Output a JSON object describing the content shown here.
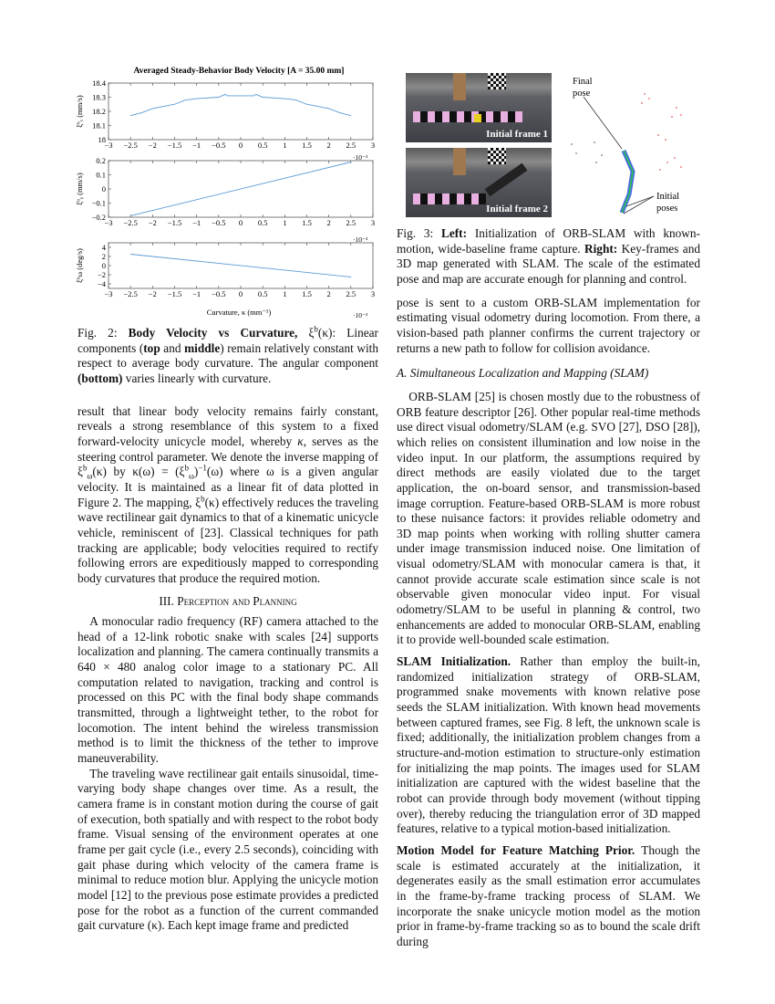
{
  "chart_data": {
    "type": "line",
    "title": "Averaged Steady-Behavior Body Velocity [A = 35.00 mm]",
    "xlabel": "Curvature, κ (mm⁻¹)",
    "x_scale_label": "·10⁻³",
    "xlim": [
      -3,
      3
    ],
    "xticks": [
      "−3",
      "−2.5",
      "−2",
      "−1.5",
      "−1",
      "−0.5",
      "0",
      "0.5",
      "1",
      "1.5",
      "2",
      "2.5",
      "3"
    ],
    "line_color": "#5b9bd5",
    "grid": false,
    "panels": [
      {
        "ylabel": "ξᵇₓ (mm/s)",
        "ylim": [
          18,
          18.4
        ],
        "yticks": [
          "18",
          "18.1",
          "18.2",
          "18.3",
          "18.4"
        ],
        "x": [
          -2.5,
          -2.25,
          -2,
          -1.5,
          -1.25,
          -1,
          -0.5,
          -0.35,
          -0.3,
          0,
          0.3,
          0.35,
          0.5,
          1,
          1.25,
          1.5,
          2,
          2.25,
          2.5
        ],
        "y": [
          18.17,
          18.19,
          18.22,
          18.25,
          18.28,
          18.29,
          18.3,
          18.32,
          18.31,
          18.31,
          18.31,
          18.32,
          18.3,
          18.29,
          18.28,
          18.25,
          18.22,
          18.19,
          18.17
        ]
      },
      {
        "ylabel": "ξᵇᵧ (mm/s)",
        "ylim": [
          -0.2,
          0.2
        ],
        "yticks": [
          "−0.2",
          "−0.1",
          "0",
          "0.1",
          "0.2"
        ],
        "scale_label": "·10⁻³",
        "x": [
          -2.5,
          2.5
        ],
        "y": [
          -0.19,
          0.19
        ]
      },
      {
        "ylabel": "ξᵇω (deg/s)",
        "ylim": [
          -5,
          5
        ],
        "yticks": [
          "−4",
          "−2",
          "0",
          "2",
          "4"
        ],
        "ytick_values": [
          -4,
          -2,
          0,
          2,
          4
        ],
        "scale_label": "·10⁻³",
        "x": [
          -2.5,
          2.5
        ],
        "y": [
          2.5,
          -2.5
        ]
      }
    ]
  },
  "fig3": {
    "label1": "Initial frame 1",
    "label2": "Initial frame 2",
    "final_pose": [
      "Final",
      "pose"
    ],
    "initial_poses": [
      "Initial",
      "poses"
    ]
  },
  "left": {
    "fig2_caption": [
      [
        "",
        "Fig. 2: "
      ],
      [
        "b",
        "Body Velocity vs Curvature,"
      ],
      [
        "",
        " ξ"
      ],
      [
        "sup",
        "b"
      ],
      [
        "",
        "(κ): Linear components ("
      ],
      [
        "b",
        "top"
      ],
      [
        "",
        " and "
      ],
      [
        "b",
        "middle"
      ],
      [
        "",
        ") remain relatively constant with respect to average body curvature. The angular component "
      ],
      [
        "b",
        "(bottom)"
      ],
      [
        "",
        " varies linearly with curvature."
      ]
    ],
    "p1": [
      [
        "",
        "result that linear body velocity remains fairly constant, reveals a strong resemblance of this system to a fixed forward-velocity unicycle model, whereby "
      ],
      [
        "i",
        "κ"
      ],
      [
        "",
        ", serves as the steering control parameter. We denote the inverse mapping of ξ"
      ],
      [
        "sup",
        "b"
      ],
      [
        "sub",
        "ω"
      ],
      [
        "",
        "(κ) by κ(ω) = (ξ"
      ],
      [
        "sup",
        "b"
      ],
      [
        "sub",
        "ω"
      ],
      [
        "",
        ")"
      ],
      [
        "sup",
        "−1"
      ],
      [
        "",
        "(ω) where ω is a given angular velocity. It is maintained as a linear fit of data plotted in Figure 2. The mapping, ξ"
      ],
      [
        "sup",
        "b"
      ],
      [
        "",
        "(κ) effectively reduces the traveling wave rectilinear gait dynamics to that of a kinematic unicycle vehicle, reminiscent of [23]. Classical techniques for path tracking are applicable; body velocities required to rectify following errors are expeditiously mapped to corresponding body curvatures that produce the required motion."
      ]
    ],
    "section": "III. Perception and Planning",
    "p2": [
      [
        "",
        "A monocular radio frequency (RF) camera attached to the head of a 12-link robotic snake with scales [24] supports localization and planning. The camera continually transmits a 640 × 480 analog color image to a stationary PC. All computation related to navigation, tracking and control is processed on this PC with the final body shape commands transmitted, through a lightweight tether, to the robot for locomotion. The intent behind the wireless transmission method is to limit the thickness of the tether to improve maneuverability."
      ]
    ],
    "p3": [
      [
        "",
        "The traveling wave rectilinear gait entails sinusoidal, time-varying body shape changes over time. As a result, the camera frame is in constant motion during the course of gait of execution, both spatially and with respect to the robot body frame. Visual sensing of the environment operates at one frame per gait cycle (i.e., every 2.5 seconds), coinciding with gait phase during which velocity of the camera frame is minimal to reduce motion blur. Applying the unicycle motion model [12] to the previous pose estimate provides a predicted pose for the robot as a function of the current commanded gait curvature (κ). Each kept image frame and predicted"
      ]
    ]
  },
  "right": {
    "fig3_caption": [
      [
        "",
        "Fig. 3: "
      ],
      [
        "b",
        "Left:"
      ],
      [
        "",
        " Initialization of ORB-SLAM with known-motion, wide-baseline frame capture. "
      ],
      [
        "b",
        "Right:"
      ],
      [
        "",
        " Key-frames and 3D map generated with SLAM. The scale of the estimated pose and map are accurate enough for planning and control."
      ]
    ],
    "p1": [
      [
        "",
        "pose is sent to a custom ORB-SLAM implementation for estimating visual odometry during locomotion. From there, a vision-based path planner confirms the current trajectory or returns a new path to follow for collision avoidance."
      ]
    ],
    "subsection": "A. Simultaneous Localization and Mapping (SLAM)",
    "p2": [
      [
        "",
        "ORB-SLAM [25] is chosen mostly due to the robustness of ORB feature descriptor [26]. Other popular real-time methods use direct visual odometry/SLAM (e.g. SVO [27], DSO [28]), which relies on consistent illumination and low noise in the video input. In our platform, the assumptions required by direct methods are easily violated due to the target application, the on-board sensor, and transmission-based image corruption. Feature-based ORB-SLAM is more robust to these nuisance factors: it provides reliable odometry and 3D map points when working with rolling shutter camera under image transmission induced noise. One limitation of visual odometry/SLAM with monocular camera is that, it cannot provide accurate scale estimation since scale is not observable given monocular video input. For visual odometry/SLAM to be useful in planning & control, two enhancements are added to monocular ORB-SLAM, enabling it to provide well-bounded scale estimation."
      ]
    ],
    "p3": [
      [
        "b",
        "SLAM Initialization."
      ],
      [
        "",
        " Rather than employ the built-in, randomized initialization strategy of ORB-SLAM, programmed snake movements with known relative pose seeds the SLAM initialization. With known head movements between captured frames, see Fig. 8 left, the unknown scale is fixed; additionally, the initialization problem changes from a structure-and-motion estimation to structure-only estimation for initializing the map points. The images used for SLAM initialization are captured with the widest baseline that the robot can provide through body movement (without tipping over), thereby reducing the triangulation error of 3D mapped features, relative to a typical motion-based initialization."
      ]
    ],
    "p4": [
      [
        "b",
        "Motion Model for Feature Matching Prior."
      ],
      [
        "",
        " Though the scale is estimated accurately at the initialization, it degenerates easily as the small estimation error accumulates in the frame-by-frame tracking process of SLAM. We incorporate the snake unicycle motion model as the motion prior in frame-by-frame tracking so as to bound the scale drift during"
      ]
    ]
  }
}
